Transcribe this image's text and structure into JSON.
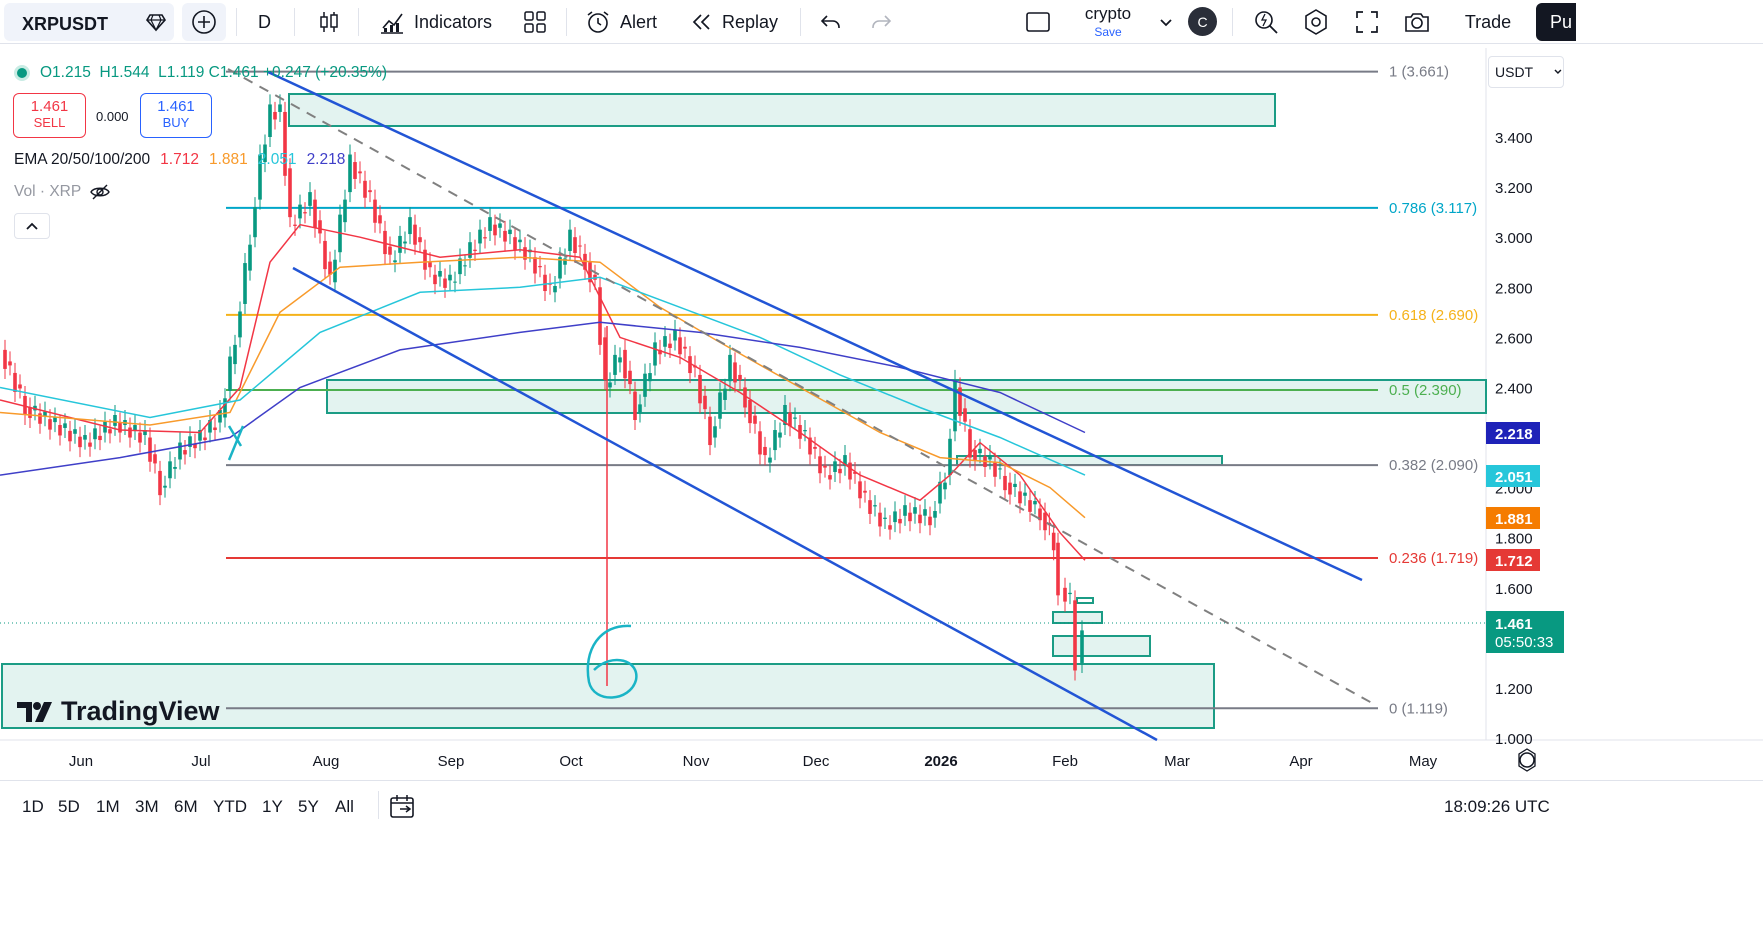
{
  "toolbar": {
    "symbol": "XRPUSDT",
    "interval": "D",
    "indicators_label": "Indicators",
    "alert_label": "Alert",
    "replay_label": "Replay",
    "layout_name": "crypto",
    "save_label": "Save",
    "avatar_letter": "C",
    "trade_label": "Trade",
    "publish_label": "Pu"
  },
  "legend": {
    "open": "O1.215",
    "high": "H1.544",
    "low": "L1.119",
    "close": "C1.461",
    "change": "+0.247 (+20.35%)"
  },
  "quote": {
    "sell_price": "1.461",
    "sell_label": "SELL",
    "spread": "0.000",
    "buy_price": "1.461",
    "buy_label": "BUY"
  },
  "ema_legend": {
    "name": "EMA 20/50/100/200",
    "v20": "1.712",
    "v50": "1.881",
    "v100": "2.051",
    "v200": "2.218"
  },
  "vol_legend": "Vol · XRP",
  "currency": "USDT",
  "brand": "TradingView",
  "colors": {
    "up": "#089981",
    "down": "#f23645",
    "ema20": "#f23645",
    "ema50": "#f89a2b",
    "ema100": "#26c6da",
    "ema200": "#3f3fc8",
    "channel": "#2255d5",
    "zone": "#1b9c85"
  },
  "price_axis": {
    "ticks": [
      "3.400",
      "3.200",
      "3.000",
      "2.800",
      "2.600",
      "2.400",
      "2.000",
      "1.800",
      "1.600",
      "1.200",
      "1.000"
    ],
    "labels": [
      {
        "text": "2.218",
        "color": "#1e22b8"
      },
      {
        "text": "2.051",
        "color": "#26c6da"
      },
      {
        "text": "1.881",
        "color": "#f57c00"
      },
      {
        "text": "1.712",
        "color": "#e53935"
      },
      {
        "text": "1.461",
        "countdown": "05:50:33",
        "color": "#089981"
      }
    ]
  },
  "fib_levels": [
    {
      "label": "1 (3.661)",
      "price": 3.661,
      "color": "#787b86"
    },
    {
      "label": "0.786 (3.117)",
      "price": 3.117,
      "color": "#00a6c8"
    },
    {
      "label": "0.618 (2.690)",
      "price": 2.69,
      "color": "#f5b21a"
    },
    {
      "label": "0.5 (2.390)",
      "price": 2.39,
      "color": "#4caf50"
    },
    {
      "label": "0.382 (2.090)",
      "price": 2.09,
      "color": "#787b86"
    },
    {
      "label": "0.236 (1.719)",
      "price": 1.719,
      "color": "#e53935"
    },
    {
      "label": "0 (1.119)",
      "price": 1.119,
      "color": "#787b86"
    }
  ],
  "time_axis": [
    "Jun",
    "Jul",
    "Aug",
    "Sep",
    "Oct",
    "Nov",
    "Dec",
    "2026",
    "Feb",
    "Mar",
    "Apr",
    "May"
  ],
  "annotation_text": "6",
  "ranges": [
    "1D",
    "5D",
    "1M",
    "3M",
    "6M",
    "YTD",
    "1Y",
    "5Y",
    "All"
  ],
  "utc_time": "18:09:26 UTC"
}
